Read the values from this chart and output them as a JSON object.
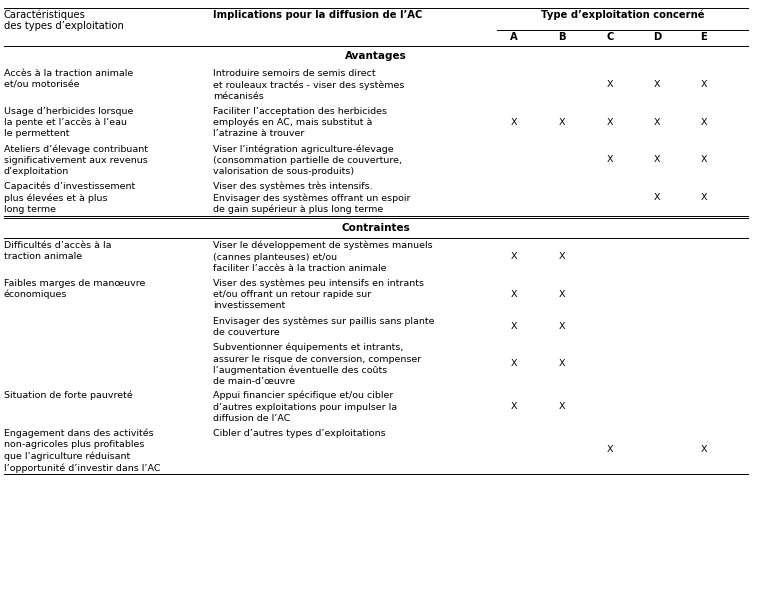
{
  "col1_header_line1": "Caractéristiques",
  "col1_header_line2": "des types d’exploitation",
  "col2_header": "Implications pour la diffusion de l’AC",
  "col3_header": "Type d’exploitation concerné",
  "type_labels": [
    "A",
    "B",
    "C",
    "D",
    "E"
  ],
  "section_avantages": "Avantages",
  "section_contraintes": "Contraintes",
  "rows": [
    {
      "section": "Avantages",
      "char": "Accès à la traction animale\net/ou motorisée",
      "impl": "Introduire semoirs de semis direct\net rouleaux tractés - viser des systèmes\nmécanisés",
      "types": [
        "",
        "",
        "X",
        "X",
        "X"
      ],
      "row_lines": 3
    },
    {
      "section": "Avantages",
      "char": "Usage d’herbicides lorsque\nla pente et l’accès à l’eau\nle permettent",
      "impl": "Faciliter l’acceptation des herbicides\nemployés en AC, mais substitut à\nl’atrazine à trouver",
      "types": [
        "X",
        "X",
        "X",
        "X",
        "X"
      ],
      "row_lines": 3
    },
    {
      "section": "Avantages",
      "char": "Ateliers d’élevage contribuant\nsignificativement aux revenus\nd’exploitation",
      "impl": "Viser l’intégration agriculture-élevage\n(consommation partielle de couverture,\nvalorisation de sous-produits)",
      "types": [
        "",
        "",
        "X",
        "X",
        "X"
      ],
      "row_lines": 3
    },
    {
      "section": "Avantages",
      "char": "Capacités d’investissement\nplus élevées et à plus\nlong terme",
      "impl": "Viser des systèmes très intensifs.\nEnvisager des systèmes offrant un espoir\nde gain supérieur à plus long terme",
      "types": [
        "",
        "",
        "",
        "X",
        "X"
      ],
      "row_lines": 3
    },
    {
      "section": "Contraintes",
      "char": "Difficultés d’accès à la\ntraction animale",
      "impl": "Viser le développement de systèmes manuels\n(cannes planteuses) et/ou\nfaciliter l’accès à la traction animale",
      "types": [
        "X",
        "X",
        "",
        "",
        ""
      ],
      "row_lines": 3
    },
    {
      "section": "Contraintes",
      "char": "Faibles marges de manœuvre\néconomiques",
      "impl": "Viser des systèmes peu intensifs en intrants\net/ou offrant un retour rapide sur\ninvestissement",
      "types": [
        "X",
        "X",
        "",
        "",
        ""
      ],
      "row_lines": 3
    },
    {
      "section": "Contraintes",
      "char": "",
      "impl": "Envisager des systèmes sur paillis sans plante\nde couverture",
      "types": [
        "X",
        "X",
        "",
        "",
        ""
      ],
      "row_lines": 2
    },
    {
      "section": "Contraintes",
      "char": "",
      "impl": "Subventionner équipements et intrants,\nassurer le risque de conversion, compenser\nl’augmentation éventuelle des coûts\nde main-d’œuvre",
      "types": [
        "X",
        "X",
        "",
        "",
        ""
      ],
      "row_lines": 4
    },
    {
      "section": "Contraintes",
      "char": "Situation de forte pauvreté",
      "impl": "Appui financier spécifique et/ou cibler\nd’autres exploitations pour impulser la\ndiffusion de l’AC",
      "types": [
        "X",
        "X",
        "",
        "",
        ""
      ],
      "row_lines": 3
    },
    {
      "section": "Contraintes",
      "char": "Engagement dans des activités\nnon-agricoles plus profitables\nque l’agriculture réduisant\nl’opportunité d’investir dans l’AC",
      "impl": "Cibler d’autres types d’exploitations",
      "types": [
        "",
        "",
        "X",
        "",
        "X"
      ],
      "row_lines": 4
    }
  ],
  "bg_color": "#ffffff",
  "text_color": "#000000",
  "font_size": 6.8,
  "header_font_size": 7.2,
  "section_font_size": 7.5
}
